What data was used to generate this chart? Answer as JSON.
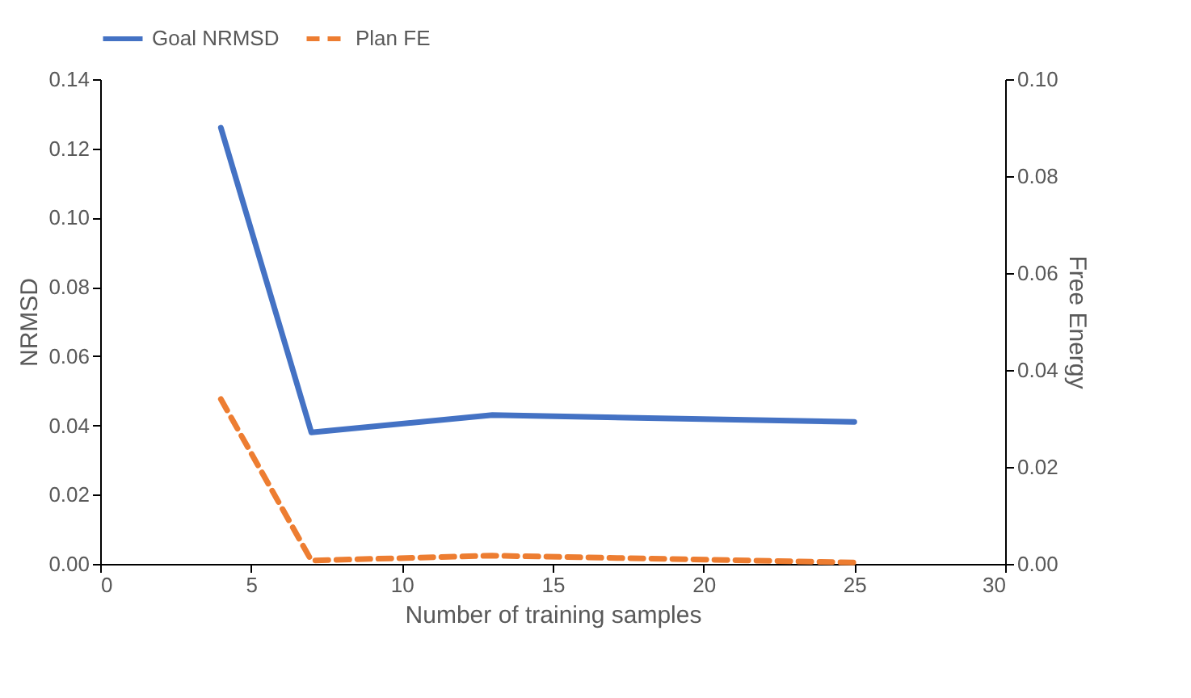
{
  "chart_data": {
    "type": "line",
    "xlabel": "Number of training samples",
    "ylabel": "NRMSD",
    "y2label": "Free Energy",
    "x": [
      4,
      7,
      13,
      25
    ],
    "series": [
      {
        "name": "Goal NRMSD",
        "color": "#4472c4",
        "line_style": "solid",
        "values": [
          0.126,
          0.038,
          0.043,
          0.041
        ]
      },
      {
        "name": "Plan FE",
        "color": "#ed7d31",
        "line_style": "dashed",
        "axis": "y2",
        "values": [
          0.034,
          0.0007,
          0.0017,
          0.0003
        ]
      }
    ],
    "xlim": [
      0,
      30
    ],
    "xticks": [
      0,
      5,
      10,
      15,
      20,
      25,
      30
    ],
    "ylim": [
      0,
      0.14
    ],
    "yticks": [
      {
        "value": 0,
        "label": "0.00"
      },
      {
        "value": 0.02,
        "label": "0.02"
      },
      {
        "value": 0.04,
        "label": "0.04"
      },
      {
        "value": 0.06,
        "label": "0.06"
      },
      {
        "value": 0.08,
        "label": "0.08"
      },
      {
        "value": 0.1,
        "label": "0.10"
      },
      {
        "value": 0.12,
        "label": "0.12"
      },
      {
        "value": 0.14,
        "label": "0.14"
      }
    ],
    "y2lim": [
      0,
      0.1
    ],
    "y2ticks": [
      {
        "value": 0,
        "label": "0.00"
      },
      {
        "value": 0.02,
        "label": "0.02"
      },
      {
        "value": 0.04,
        "label": "0.04"
      },
      {
        "value": 0.06,
        "label": "0.06"
      },
      {
        "value": 0.08,
        "label": "0.08"
      },
      {
        "value": 0.1,
        "label": "0.10"
      }
    ],
    "grid": false,
    "legend": "top",
    "marker": "none"
  }
}
